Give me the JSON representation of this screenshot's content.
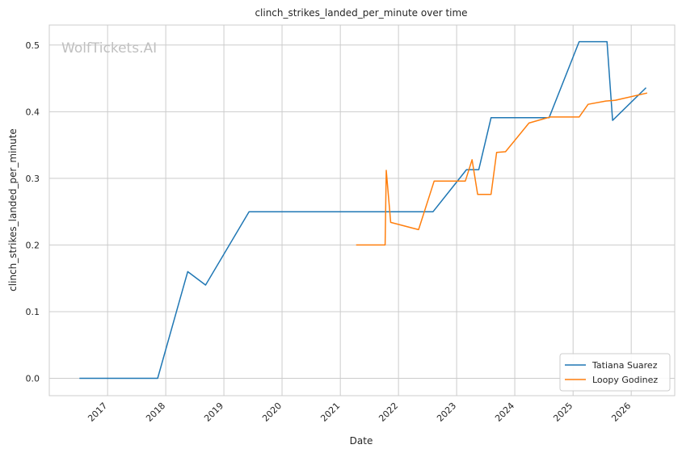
{
  "chart_data": {
    "type": "line",
    "title": "clinch_strikes_landed_per_minute over time",
    "xlabel": "Date",
    "ylabel": "clinch_strikes_landed_per_minute",
    "watermark": "WolfTickets.AI",
    "x_ticks": [
      "2017",
      "2018",
      "2019",
      "2020",
      "2021",
      "2022",
      "2023",
      "2024",
      "2025",
      "2026"
    ],
    "y_ticks": [
      "0.0",
      "0.1",
      "0.2",
      "0.3",
      "0.4",
      "0.5"
    ],
    "xlim": [
      "2016-01-01",
      "2026-10-01"
    ],
    "ylim": [
      -0.026,
      0.53
    ],
    "grid": true,
    "legend_position": "lower-right",
    "series": [
      {
        "name": "Tatiana Suarez",
        "color": "#1f77b4",
        "points": [
          [
            "2016-07-08",
            0.0
          ],
          [
            "2017-11-11",
            0.0
          ],
          [
            "2018-05-19",
            0.16
          ],
          [
            "2018-09-08",
            0.14
          ],
          [
            "2019-06-08",
            0.25
          ],
          [
            "2022-08-06",
            0.25
          ],
          [
            "2023-03-04",
            0.313
          ],
          [
            "2023-05-20",
            0.313
          ],
          [
            "2023-08-05",
            0.391
          ],
          [
            "2024-08-03",
            0.391
          ],
          [
            "2025-02-08",
            0.505
          ],
          [
            "2025-08-02",
            0.505
          ],
          [
            "2025-09-06",
            0.387
          ],
          [
            "2026-04-04",
            0.436
          ]
        ]
      },
      {
        "name": "Loopy Godinez",
        "color": "#ff7f0e",
        "points": [
          [
            "2021-04-10",
            0.2
          ],
          [
            "2021-10-09",
            0.2
          ],
          [
            "2021-10-16",
            0.312
          ],
          [
            "2021-11-13",
            0.234
          ],
          [
            "2022-05-07",
            0.223
          ],
          [
            "2022-08-13",
            0.296
          ],
          [
            "2023-02-25",
            0.296
          ],
          [
            "2023-04-08",
            0.328
          ],
          [
            "2023-05-13",
            0.276
          ],
          [
            "2023-08-05",
            0.276
          ],
          [
            "2023-09-09",
            0.339
          ],
          [
            "2023-11-04",
            0.34
          ],
          [
            "2024-03-30",
            0.383
          ],
          [
            "2024-08-10",
            0.392
          ],
          [
            "2025-02-08",
            0.392
          ],
          [
            "2025-04-05",
            0.411
          ],
          [
            "2025-07-26",
            0.416
          ],
          [
            "2025-09-20",
            0.417
          ],
          [
            "2026-04-11",
            0.428
          ]
        ]
      }
    ]
  }
}
